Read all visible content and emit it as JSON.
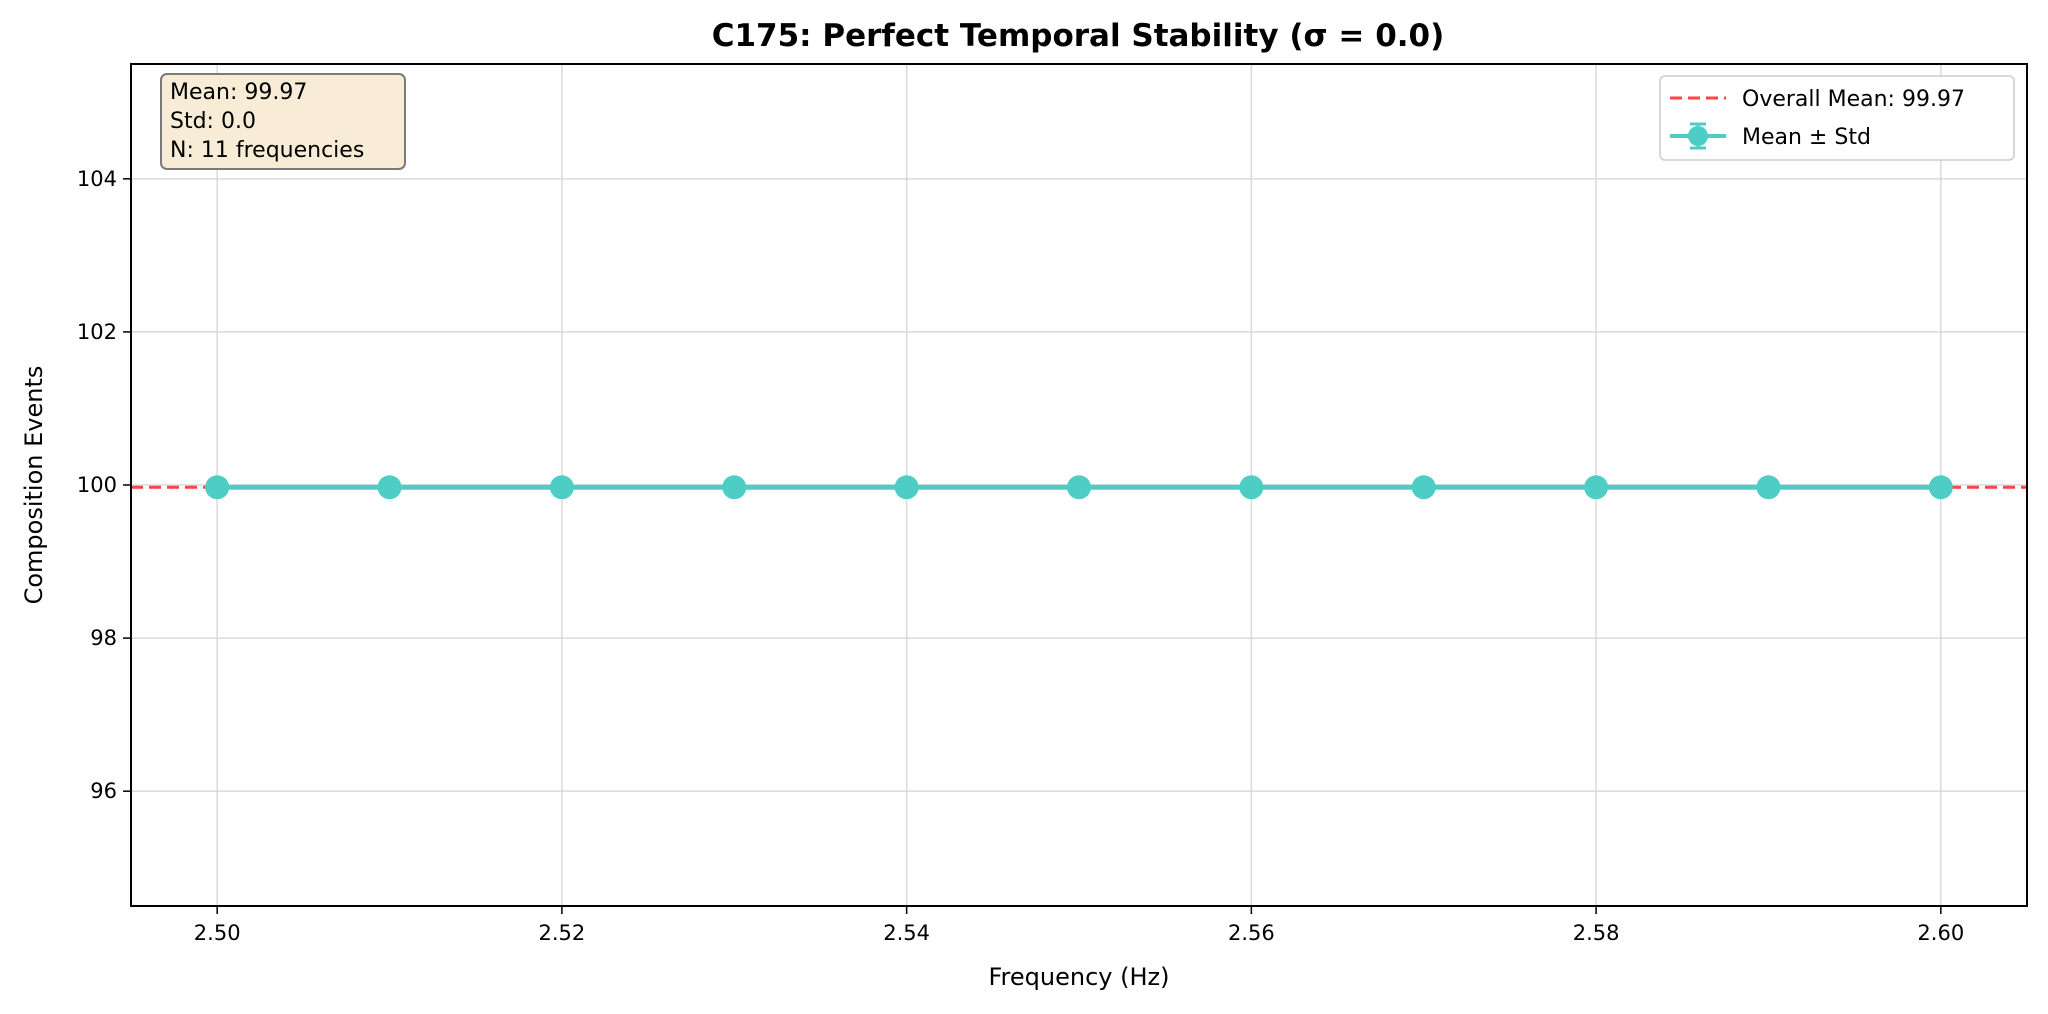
{
  "chart_data": {
    "type": "line",
    "title": "C175: Perfect Temporal Stability (σ = 0.0)",
    "xlabel": "Frequency (Hz)",
    "ylabel": "Composition Events",
    "xlim": [
      2.495,
      2.605
    ],
    "ylim": [
      94.5,
      105.5
    ],
    "xticks": [
      2.5,
      2.52,
      2.54,
      2.56,
      2.58,
      2.6
    ],
    "xtick_labels": [
      "2.50",
      "2.52",
      "2.54",
      "2.56",
      "2.58",
      "2.60"
    ],
    "yticks": [
      96,
      98,
      100,
      102,
      104
    ],
    "ytick_labels": [
      "96",
      "98",
      "100",
      "102",
      "104"
    ],
    "grid": true,
    "series": [
      {
        "name": "Mean ± Std",
        "color": "#4ecdc4",
        "x": [
          2.5,
          2.51,
          2.52,
          2.53,
          2.54,
          2.55,
          2.56,
          2.57,
          2.58,
          2.59,
          2.6
        ],
        "y": [
          99.97,
          99.97,
          99.97,
          99.97,
          99.97,
          99.97,
          99.97,
          99.97,
          99.97,
          99.97,
          99.97
        ],
        "std": [
          0,
          0,
          0,
          0,
          0,
          0,
          0,
          0,
          0,
          0,
          0
        ]
      }
    ],
    "reference_line": {
      "name": "Overall Mean: 99.97",
      "value": 99.97,
      "color": "#ff4444",
      "style": "dashed"
    },
    "legend": {
      "placement": "top-right",
      "entries": [
        "Overall Mean: 99.97",
        "Mean ± Std"
      ]
    },
    "stats_box": {
      "placement": "top-left",
      "lines": [
        "Mean: 99.97",
        "Std: 0.0",
        "N: 11 frequencies"
      ],
      "background": "#f8ecd6",
      "border": "#7a7a7a"
    }
  }
}
